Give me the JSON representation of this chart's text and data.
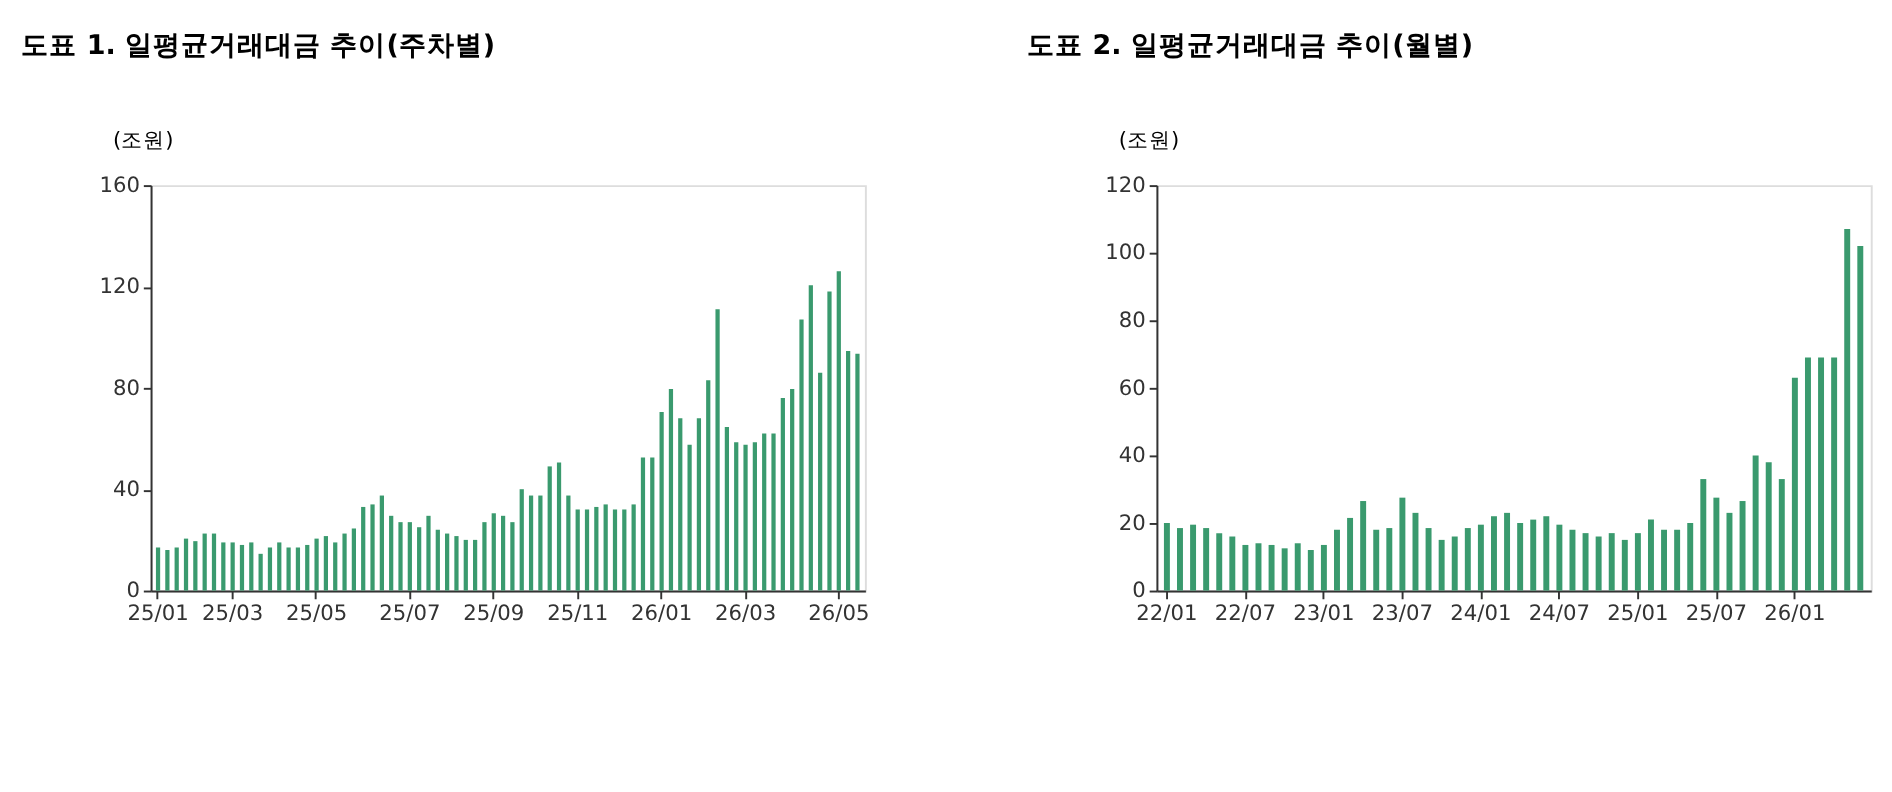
{
  "chart_data": [
    {
      "type": "bar",
      "title": "도표 1. 일평균거래대금 추이(주차별)",
      "ylabel": "(조원)",
      "color": "#3a9a6e",
      "grid": false,
      "categories": [
        "25/01",
        null,
        null,
        null,
        null,
        null,
        null,
        null,
        "25/03",
        null,
        null,
        null,
        null,
        null,
        null,
        null,
        null,
        "25/05",
        null,
        null,
        null,
        null,
        null,
        null,
        null,
        null,
        null,
        "25/07",
        null,
        null,
        null,
        null,
        null,
        null,
        null,
        null,
        "25/09",
        null,
        null,
        null,
        null,
        null,
        null,
        null,
        null,
        "25/11",
        null,
        null,
        null,
        null,
        null,
        null,
        null,
        null,
        "26/01",
        null,
        null,
        null,
        null,
        null,
        null,
        null,
        null,
        "26/03",
        null,
        null,
        null,
        null,
        null,
        null,
        null,
        null,
        null,
        "26/05",
        null,
        null
      ],
      "values": [
        17,
        16,
        17,
        20.5,
        19.5,
        22.5,
        22.5,
        19,
        19,
        18,
        19,
        14.5,
        17,
        19,
        17,
        17,
        18,
        20.5,
        21.5,
        19,
        22.5,
        24.5,
        33,
        34,
        37.5,
        29.5,
        27,
        27,
        25,
        29.5,
        24,
        22.5,
        21.5,
        20,
        20,
        27,
        30.5,
        29.5,
        27,
        40,
        37.5,
        37.5,
        49,
        50.5,
        37.5,
        32,
        32,
        33,
        34,
        32,
        32,
        34,
        52.5,
        52.5,
        70.5,
        79.5,
        68,
        57.5,
        68,
        83,
        111,
        64.5,
        58.5,
        57.5,
        58.5,
        62,
        62,
        76,
        79.5,
        107,
        120.5,
        86,
        118,
        126,
        94.5,
        93.5
      ],
      "ylim": [
        0,
        160
      ],
      "yticks": [
        0,
        40,
        80,
        120,
        160
      ]
    },
    {
      "type": "bar",
      "title": "도표 2. 일평균거래대금 추이(월별)",
      "ylabel": "(조원)",
      "color": "#3a9a6e",
      "grid": false,
      "categories": [
        "22/01",
        null,
        null,
        null,
        null,
        null,
        "22/07",
        null,
        null,
        null,
        null,
        null,
        "23/01",
        null,
        null,
        null,
        null,
        null,
        "23/07",
        null,
        null,
        null,
        null,
        null,
        "24/01",
        null,
        null,
        null,
        null,
        null,
        "24/07",
        null,
        null,
        null,
        null,
        null,
        "25/01",
        null,
        null,
        null,
        null,
        null,
        "25/07",
        null,
        null,
        null,
        null,
        null,
        "26/01",
        null,
        null,
        null,
        null,
        null
      ],
      "values": [
        20,
        18.5,
        19.5,
        18.5,
        17,
        16,
        13.5,
        14,
        13.5,
        12.5,
        14,
        12,
        13.5,
        18,
        21.5,
        26.5,
        18,
        18.5,
        27.5,
        23,
        18.5,
        15,
        16,
        18.5,
        19.5,
        22,
        23,
        20,
        21,
        22,
        19.5,
        18,
        17,
        16,
        17,
        15,
        17,
        21,
        18,
        18,
        20,
        33,
        27.5,
        23,
        26.5,
        40,
        38,
        33,
        63,
        69,
        69,
        69,
        107,
        102
      ],
      "ylim": [
        0,
        120
      ],
      "yticks": [
        0,
        20,
        40,
        60,
        80,
        100,
        120
      ]
    }
  ]
}
